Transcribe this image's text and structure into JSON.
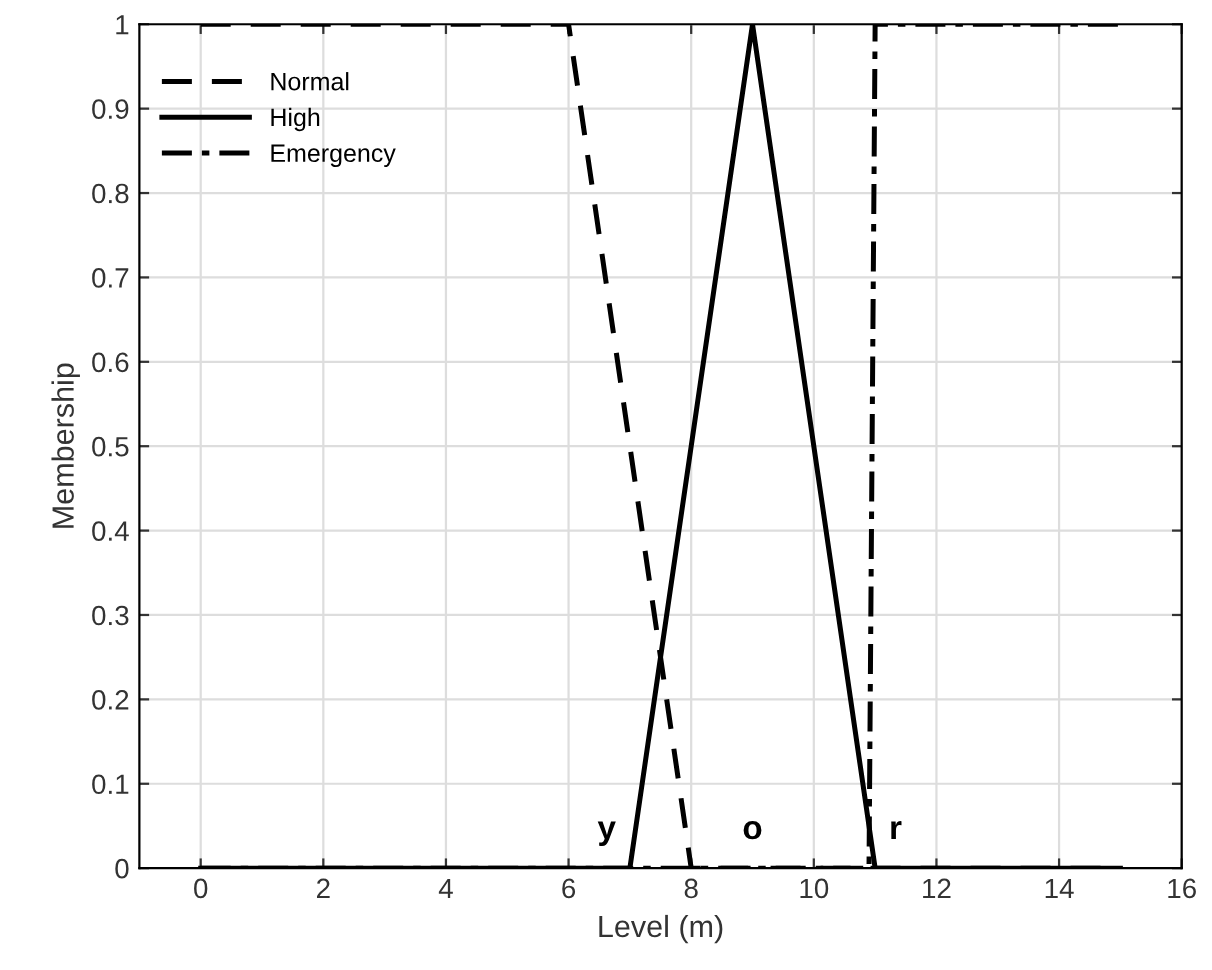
{
  "chart_data": {
    "type": "line",
    "xlabel": "Level (m)",
    "ylabel": "Membership",
    "series": [
      {
        "name": "Normal",
        "color": "#000000",
        "line_style": "dashed",
        "x": [
          0,
          6,
          8,
          15
        ],
        "values": [
          1,
          1,
          0,
          0
        ]
      },
      {
        "name": "High",
        "color": "#000000",
        "line_style": "solid",
        "x": [
          0,
          7,
          9,
          11,
          15
        ],
        "values": [
          0,
          0,
          1,
          0,
          0
        ]
      },
      {
        "name": "Emergency",
        "color": "#000000",
        "line_style": "dashdot",
        "x": [
          0,
          10.9,
          11,
          15
        ],
        "values": [
          0,
          0,
          1,
          1
        ]
      }
    ],
    "annotations": [
      {
        "text": "y",
        "x": 7,
        "y": 0
      },
      {
        "text": "o",
        "x": 9,
        "y": 0
      },
      {
        "text": "r",
        "x": 11,
        "y": 0
      }
    ],
    "xlim": [
      -1,
      16
    ],
    "xticks": [
      0,
      2,
      4,
      6,
      8,
      10,
      12,
      14,
      16
    ],
    "ylim": [
      0,
      1
    ],
    "yticks": [
      0,
      0.1,
      0.2,
      0.3,
      0.4,
      0.5,
      0.6,
      0.7,
      0.8,
      0.9,
      1
    ],
    "grid": true,
    "legend": "top left"
  }
}
